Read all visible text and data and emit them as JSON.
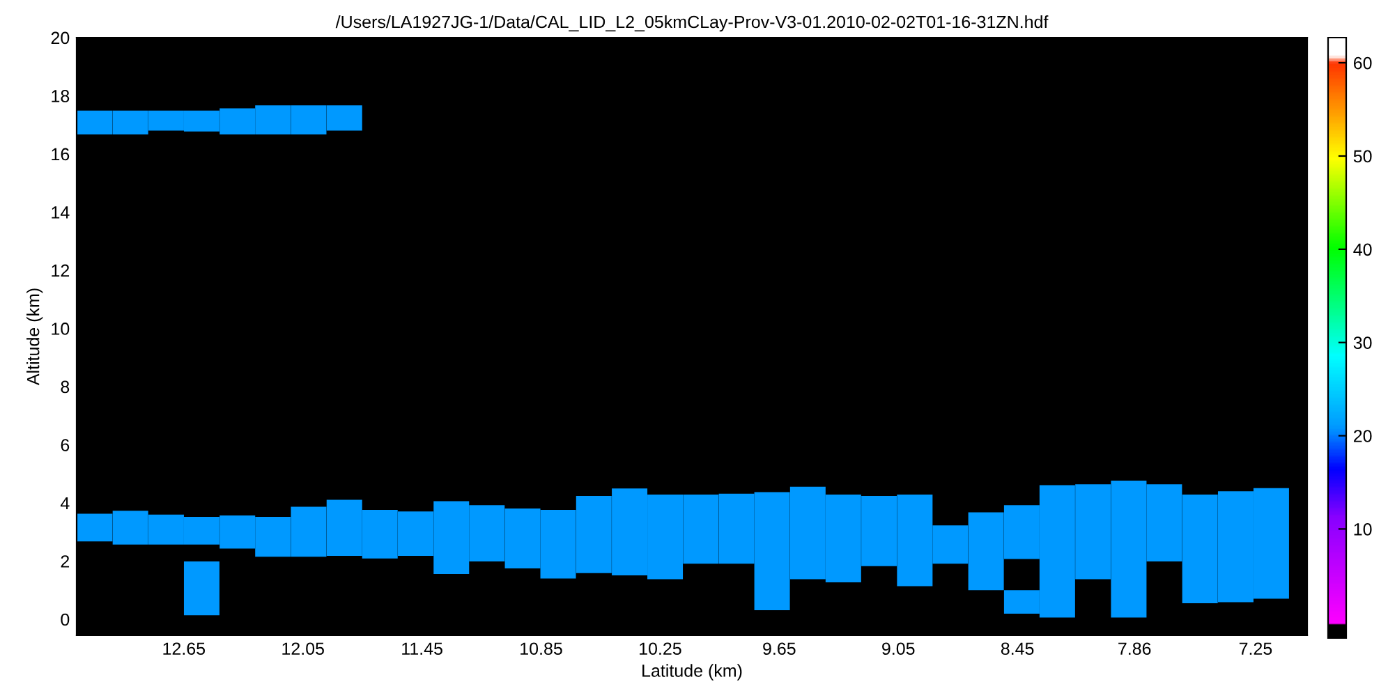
{
  "chart_data": {
    "type": "bar",
    "title": "/Users/LA1927JG-1/Data/CAL_LID_L2_05kmCLay-Prov-V3-01.2010-02-02T01-16-31ZN.hdf",
    "xlabel": "Latitude (km)",
    "ylabel": "Altitude (km)",
    "x": [
      13.099,
      12.919,
      12.739,
      12.56,
      12.38,
      12.201,
      12.021,
      11.841,
      11.662,
      11.482,
      11.302,
      11.123,
      10.943,
      10.764,
      10.584,
      10.404,
      10.225,
      10.045,
      9.865,
      9.686,
      9.506,
      9.327,
      9.147,
      8.967,
      8.788,
      8.608,
      8.428,
      8.249,
      8.069,
      7.889,
      7.71,
      7.53,
      7.35,
      7.171
    ],
    "series": [
      {
        "color": "#0099ff",
        "base": [
          2.68,
          2.57,
          2.57,
          2.57,
          2.43,
          2.15,
          2.15,
          2.18,
          2.09,
          2.18,
          1.56,
          1.99,
          1.75,
          1.4,
          1.59,
          1.51,
          1.38,
          1.91,
          1.91,
          0.31,
          1.38,
          1.27,
          1.83,
          1.14,
          1.91,
          1.0,
          2.07,
          0.06,
          1.38,
          0.06,
          1.99,
          0.55,
          0.59,
          0.71
        ],
        "values": [
          0.95,
          1.16,
          1.03,
          0.95,
          1.14,
          1.37,
          1.72,
          1.93,
          1.67,
          1.53,
          2.5,
          1.93,
          2.06,
          2.36,
          2.65,
          2.99,
          2.91,
          2.38,
          2.41,
          4.06,
          3.18,
          3.02,
          2.41,
          3.15,
          1.32,
          2.68,
          1.85,
          4.55,
          3.26,
          4.71,
          2.65,
          3.74,
          3.81,
          3.8
        ]
      },
      {
        "color": "#0099ff",
        "base": [
          null,
          null,
          null,
          0.14,
          null,
          null,
          null,
          null,
          null,
          null,
          null,
          null,
          null,
          null,
          null,
          null,
          null,
          null,
          null,
          null,
          null,
          null,
          null,
          null,
          null,
          null,
          0.19,
          null,
          null,
          null,
          null,
          null,
          null,
          null
        ],
        "values": [
          null,
          null,
          null,
          1.85,
          null,
          null,
          null,
          null,
          null,
          null,
          null,
          null,
          null,
          null,
          null,
          null,
          null,
          null,
          null,
          null,
          null,
          null,
          null,
          null,
          null,
          null,
          0.81,
          null,
          null,
          null,
          null,
          null,
          null,
          null
        ]
      },
      {
        "color": "#0099ff",
        "base": [
          16.67,
          16.67,
          16.8,
          16.77,
          16.67,
          16.67,
          16.67,
          16.8,
          null,
          null,
          null,
          null,
          null,
          null,
          null,
          null,
          null,
          null,
          null,
          null,
          null,
          null,
          null,
          null,
          null,
          null,
          null,
          null,
          null,
          null,
          null,
          null,
          null,
          null
        ],
        "values": [
          0.82,
          0.82,
          0.69,
          0.72,
          0.9,
          1.0,
          1.0,
          0.87,
          null,
          null,
          null,
          null,
          null,
          null,
          null,
          null,
          null,
          null,
          null,
          null,
          null,
          null,
          null,
          null,
          null,
          null,
          null,
          null,
          null,
          null,
          null,
          null,
          null,
          null
        ]
      }
    ],
    "xlim": [
      13.19,
      6.99
    ],
    "xticks": [
      12.65,
      12.05,
      11.45,
      10.85,
      10.25,
      9.65,
      9.05,
      8.45,
      7.86,
      7.25
    ],
    "ylim": [
      -0.55,
      20
    ],
    "yticks": [
      0,
      2,
      4,
      6,
      8,
      10,
      12,
      14,
      16,
      18,
      20
    ],
    "clim": [
      -1.7,
      62.7
    ],
    "cticks": [
      10,
      20,
      30,
      40,
      50,
      60
    ]
  }
}
